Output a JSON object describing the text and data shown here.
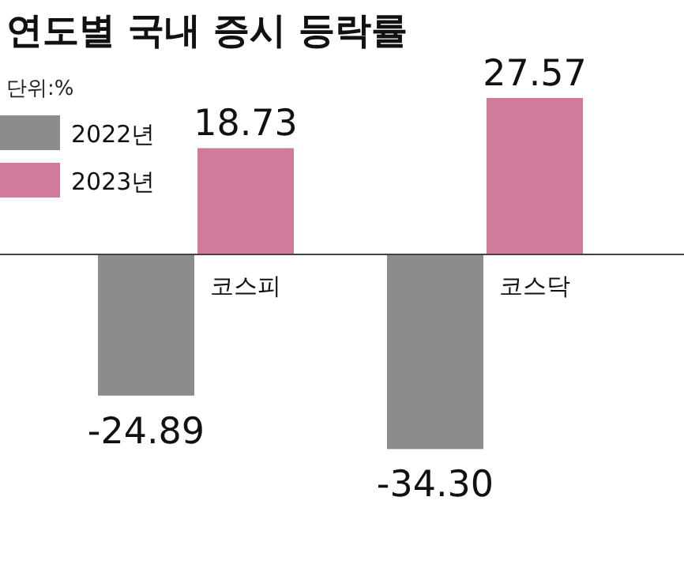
{
  "chart_data": {
    "type": "bar",
    "title": "연도별 국내 증시 등락률",
    "subtitle": "단위:%",
    "categories": [
      "코스피",
      "코스닥"
    ],
    "series": [
      {
        "name": "2022년",
        "color": "#8c8c8e",
        "values": [
          -24.89,
          -34.3
        ],
        "value_labels": [
          "-24.89",
          "-34.30"
        ]
      },
      {
        "name": "2023년",
        "color": "#d27a9b",
        "values": [
          18.73,
          27.57
        ],
        "value_labels": [
          "18.73",
          "27.57"
        ]
      }
    ],
    "legend": "top left"
  }
}
